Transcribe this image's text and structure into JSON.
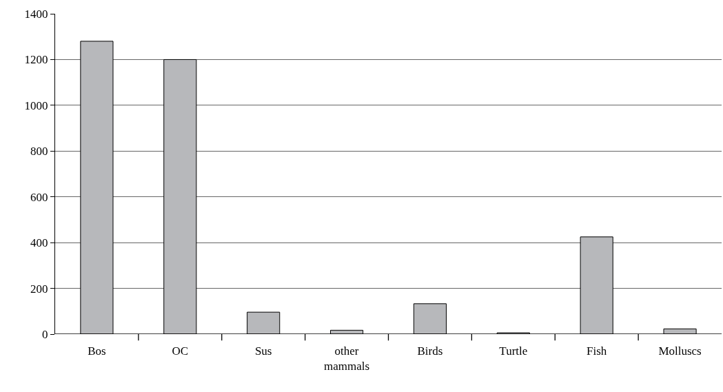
{
  "chart_data": {
    "type": "bar",
    "categories": [
      "Bos",
      "OC",
      "Sus",
      "other mammals",
      "Birds",
      "Turtle",
      "Fish",
      "Molluscs"
    ],
    "values": [
      1280,
      1200,
      96,
      17,
      133,
      6,
      425,
      23
    ],
    "color": "#b7b8bb",
    "ylim": [
      0,
      1400
    ],
    "yticks": [
      0,
      200,
      400,
      600,
      800,
      1000,
      1200,
      1400
    ],
    "grid": "y"
  }
}
